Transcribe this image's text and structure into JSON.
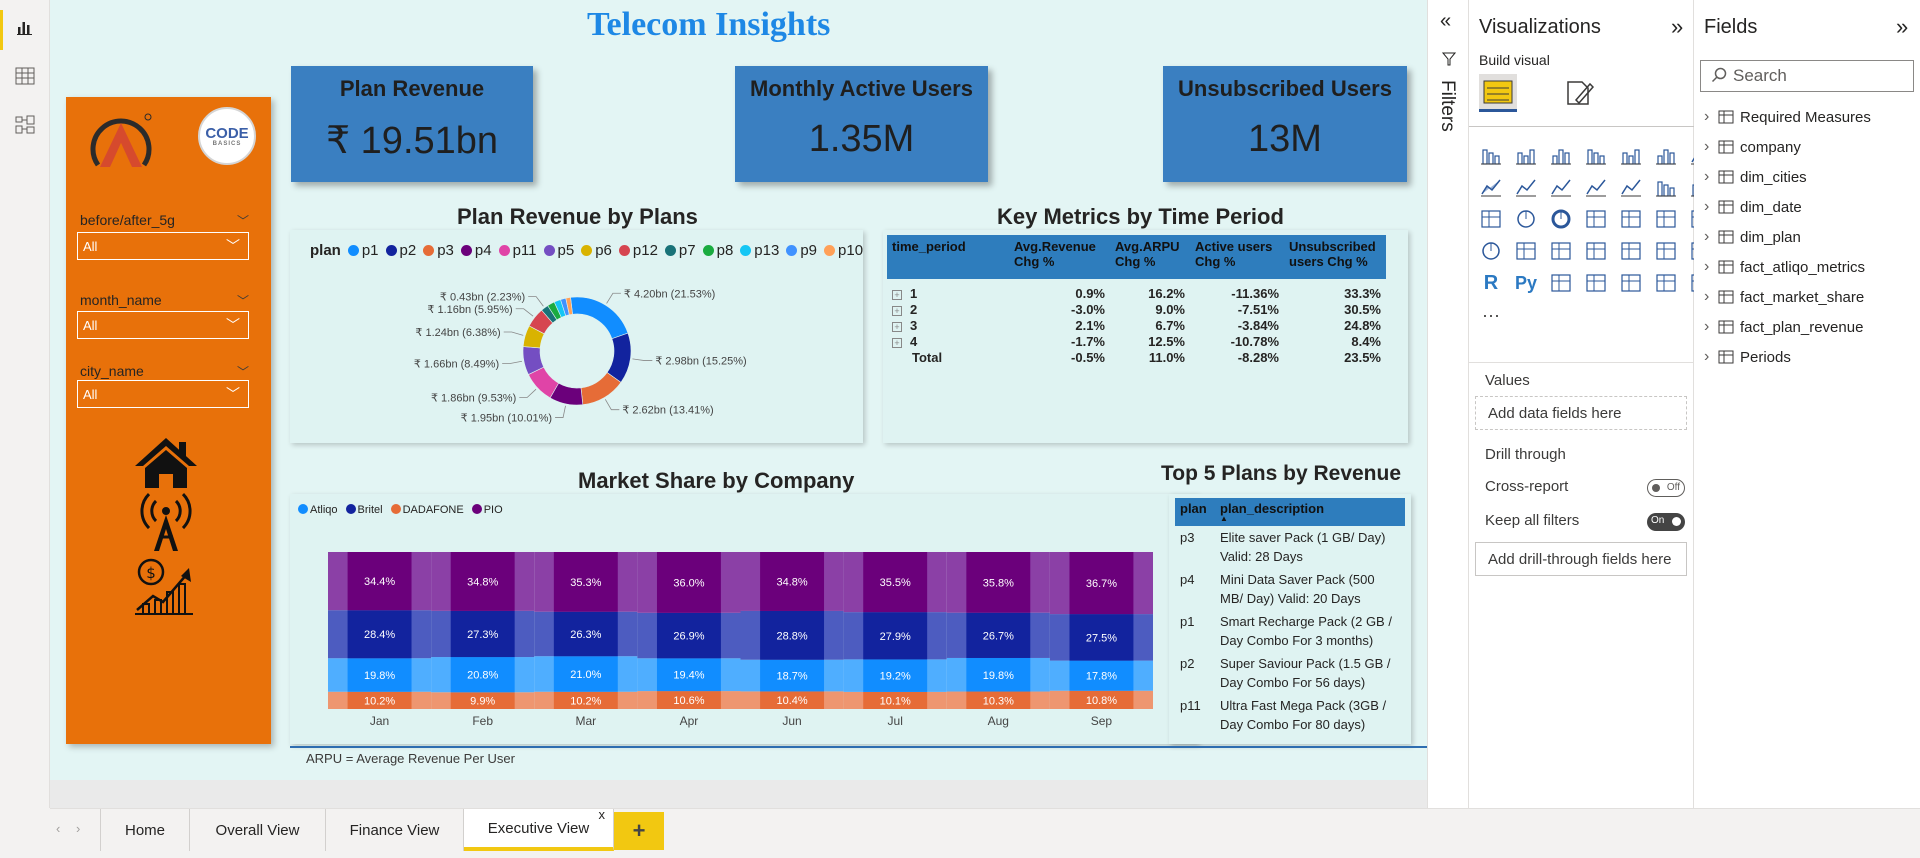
{
  "report": {
    "title": "Telecom Insights",
    "footnote": "ARPU = Average Revenue Per User"
  },
  "slicers": [
    {
      "title": "before/after_5g",
      "value": "All"
    },
    {
      "title": "month_name",
      "value": "All"
    },
    {
      "title": "city_name",
      "value": "All"
    }
  ],
  "logos": {
    "codebasics": "ODE",
    "codebasics_sub": "BASICS",
    "codebasics_c": "C"
  },
  "kpis": [
    {
      "label": "Plan Revenue",
      "value": "₹ 19.51bn"
    },
    {
      "label": "Monthly Active Users",
      "value": "1.35M"
    },
    {
      "label": "Unsubscribed Users",
      "value": "13M"
    }
  ],
  "plan_chart": {
    "title": "Plan Revenue by Plans",
    "legend_title": "plan",
    "legend": [
      {
        "name": "p1",
        "color": "#118dff"
      },
      {
        "name": "p2",
        "color": "#12239e"
      },
      {
        "name": "p3",
        "color": "#e66c37"
      },
      {
        "name": "p4",
        "color": "#6b007b"
      },
      {
        "name": "p11",
        "color": "#e044a7"
      },
      {
        "name": "p5",
        "color": "#744ec2"
      },
      {
        "name": "p6",
        "color": "#d9b300"
      },
      {
        "name": "p12",
        "color": "#d64550"
      },
      {
        "name": "p7",
        "color": "#197278"
      },
      {
        "name": "p8",
        "color": "#1aab40"
      },
      {
        "name": "p13",
        "color": "#15c6f4"
      },
      {
        "name": "p9",
        "color": "#4092ff"
      },
      {
        "name": "p10",
        "color": "#ffa058"
      }
    ]
  },
  "chart_data": [
    {
      "type": "pie",
      "title": "Plan Revenue by Plans",
      "legend_title": "plan",
      "categories": [
        "p1",
        "p2",
        "p3",
        "p4",
        "p11",
        "p5",
        "p6",
        "p12",
        "p7",
        "p8",
        "p13",
        "p9",
        "p10"
      ],
      "values": [
        21.53,
        15.25,
        13.41,
        10.01,
        9.53,
        8.49,
        6.38,
        5.95,
        2.23,
        2.2,
        2.0,
        1.6,
        1.42
      ],
      "labels": [
        "₹ 4.20bn (21.53%)",
        "₹ 2.98bn (15.25%)",
        "₹ 2.62bn (13.41%)",
        "₹ 1.95bn (10.01%)",
        "₹ 1.86bn (9.53%)",
        "₹ 1.66bn (8.49%)",
        "₹ 1.24bn (6.38%)",
        "₹ 1.16bn (5.95%)",
        "₹ 0.43bn (2.23%)"
      ]
    },
    {
      "type": "bar",
      "title": "Market Share by Company",
      "categories": [
        "Jan",
        "Feb",
        "Mar",
        "Apr",
        "Jun",
        "Jul",
        "Aug",
        "Sep"
      ],
      "series": [
        {
          "name": "DADAFONE",
          "color": "#e66c37",
          "values": [
            10.2,
            9.9,
            10.2,
            10.6,
            10.4,
            10.1,
            10.3,
            10.8
          ]
        },
        {
          "name": "Atliqo",
          "color": "#118dff",
          "values": [
            19.8,
            20.8,
            21.0,
            19.4,
            18.7,
            19.2,
            19.8,
            17.8
          ]
        },
        {
          "name": "Britel",
          "color": "#12239e",
          "values": [
            28.4,
            27.3,
            26.3,
            26.9,
            28.8,
            27.9,
            26.7,
            27.5
          ]
        },
        {
          "name": "PIO",
          "color": "#6b007b",
          "values": [
            34.4,
            34.8,
            35.3,
            36.0,
            34.8,
            35.5,
            35.8,
            36.7
          ]
        }
      ]
    }
  ],
  "market_share": {
    "title": "Market Share by Company",
    "legend": [
      {
        "name": "Atliqo",
        "color": "#118dff"
      },
      {
        "name": "Britel",
        "color": "#12239e"
      },
      {
        "name": "DADAFONE",
        "color": "#e66c37"
      },
      {
        "name": "PIO",
        "color": "#6b007b"
      }
    ]
  },
  "metrics": {
    "title": "Key Metrics by Time Period",
    "headers": [
      "time_period",
      "Avg.Revenue Chg %",
      "Avg.ARPU Chg %",
      "Active users Chg %",
      "Unsubscribed users Chg %"
    ],
    "rows": [
      [
        "1",
        "0.9%",
        "16.2%",
        "-11.36%",
        "33.3%"
      ],
      [
        "2",
        "-3.0%",
        "9.0%",
        "-7.51%",
        "30.5%"
      ],
      [
        "3",
        "2.1%",
        "6.7%",
        "-3.84%",
        "24.8%"
      ],
      [
        "4",
        "-1.7%",
        "12.5%",
        "-10.78%",
        "8.4%"
      ]
    ],
    "total": [
      "Total",
      "-0.5%",
      "11.0%",
      "-8.28%",
      "23.5%"
    ]
  },
  "top5": {
    "title": "Top 5 Plans by Revenue",
    "headers": [
      "plan",
      "plan_description"
    ],
    "rows": [
      [
        "p3",
        "Elite saver Pack (1 GB/ Day) Valid: 28 Days"
      ],
      [
        "p4",
        "Mini Data Saver Pack (500 MB/ Day) Valid: 20 Days"
      ],
      [
        "p1",
        "Smart Recharge Pack (2 GB / Day Combo For 3 months)"
      ],
      [
        "p2",
        "Super Saviour Pack (1.5 GB / Day Combo For 56 days)"
      ],
      [
        "p11",
        "Ultra Fast Mega Pack (3GB / Day Combo For 80 days)"
      ]
    ]
  },
  "filters_pane": {
    "label": "Filters"
  },
  "viz_pane": {
    "title": "Visualizations",
    "build_visual": "Build visual",
    "values_label": "Values",
    "values_drop": "Add data fields here",
    "drill_label": "Drill through",
    "cross_report": "Cross-report",
    "cross_report_state": "Off",
    "keep_filters": "Keep all filters",
    "keep_filters_state": "On",
    "drill_drop": "Add drill-through fields here",
    "r_icon": "R",
    "py_icon": "Py",
    "more": "···"
  },
  "fields_pane": {
    "title": "Fields",
    "search_placeholder": "Search",
    "items": [
      {
        "name": "Required Measures",
        "icon": "calculator-icon"
      },
      {
        "name": "company",
        "icon": "table-icon"
      },
      {
        "name": "dim_cities",
        "icon": "table-icon"
      },
      {
        "name": "dim_date",
        "icon": "table-icon"
      },
      {
        "name": "dim_plan",
        "icon": "table-icon"
      },
      {
        "name": "fact_atliqo_metrics",
        "icon": "table-icon"
      },
      {
        "name": "fact_market_share",
        "icon": "table-icon"
      },
      {
        "name": "fact_plan_revenue",
        "icon": "table-icon"
      },
      {
        "name": "Periods",
        "icon": "table-icon"
      }
    ]
  },
  "tabs": [
    {
      "label": "Home"
    },
    {
      "label": "Overall View"
    },
    {
      "label": "Finance View"
    },
    {
      "label": "Executive View",
      "active": true
    }
  ],
  "tab_add": "+",
  "tab_close": "x"
}
